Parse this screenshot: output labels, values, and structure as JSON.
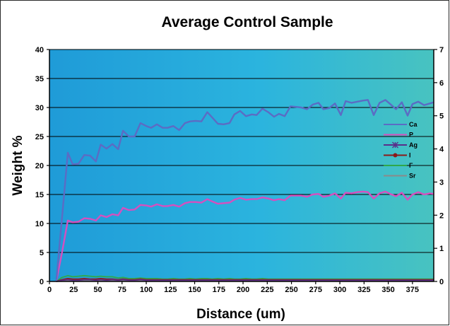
{
  "chart_data": {
    "type": "line",
    "title": "Average Control Sample",
    "xlabel": "Distance (um)",
    "ylabel": "Weight %",
    "xlim": [
      0,
      397
    ],
    "ylim": [
      0,
      40
    ],
    "y2lim": [
      0,
      7
    ],
    "x_ticks": [
      "0",
      "25",
      "50",
      "75",
      "100",
      "125",
      "150",
      "175",
      "200",
      "225",
      "250",
      "275",
      "300",
      "325",
      "350",
      "375"
    ],
    "y_ticks": [
      "0",
      "5",
      "10",
      "15",
      "20",
      "25",
      "30",
      "35",
      "40"
    ],
    "y2_ticks": [
      "0",
      "1",
      "2",
      "3",
      "4",
      "5",
      "6",
      "7"
    ],
    "grid": "horizontal major",
    "legend_position": "right",
    "background_gradient": [
      "#1f9bd8",
      "#2bb4de",
      "#48c3c0"
    ],
    "x": [
      7,
      13,
      19,
      24,
      30,
      36,
      42,
      48,
      53,
      59,
      65,
      71,
      76,
      82,
      88,
      94,
      100,
      105,
      111,
      117,
      122,
      128,
      134,
      140,
      145,
      151,
      157,
      163,
      168,
      174,
      180,
      186,
      191,
      197,
      203,
      209,
      214,
      220,
      226,
      232,
      237,
      243,
      249,
      255,
      260,
      266,
      272,
      278,
      283,
      289,
      295,
      301,
      306,
      312,
      318,
      324,
      329,
      335,
      341,
      347,
      352,
      358,
      364,
      370,
      375,
      381,
      387,
      393,
      397
    ],
    "series": [
      {
        "name": "Ca",
        "color": "#5b6cc4",
        "marker": "line",
        "values": [
          0,
          11,
          22.2,
          20.2,
          20.3,
          21.8,
          21.7,
          20.7,
          23.6,
          22.9,
          23.7,
          22.8,
          26,
          25,
          25,
          27.3,
          26.8,
          26.5,
          27.1,
          26.5,
          26.5,
          26.8,
          26.1,
          27.3,
          27.6,
          27.7,
          27.6,
          29.2,
          28.3,
          27.2,
          27.1,
          27.3,
          28.8,
          29.4,
          28.5,
          28.8,
          28.7,
          29.8,
          29.2,
          28.4,
          28.9,
          28.5,
          30.2,
          30.1,
          30,
          29.7,
          30.5,
          30.8,
          29.7,
          29.9,
          30.7,
          28.7,
          31.1,
          30.8,
          31,
          31.2,
          31.3,
          28.7,
          30.8,
          31.3,
          30.6,
          29.7,
          30.9,
          28.6,
          30.6,
          31,
          30.4,
          30.7,
          30.9
        ]
      },
      {
        "name": "P",
        "color": "#d64fbf",
        "marker": "line",
        "values": [
          0,
          5,
          10.5,
          10.2,
          10.3,
          10.9,
          10.8,
          10.5,
          11.4,
          11.1,
          11.6,
          11.4,
          12.7,
          12.3,
          12.4,
          13.2,
          13.1,
          12.9,
          13.3,
          13,
          13,
          13.2,
          12.9,
          13.5,
          13.7,
          13.7,
          13.6,
          14.2,
          13.8,
          13.4,
          13.5,
          13.6,
          14.1,
          14.4,
          14.1,
          14.2,
          14.2,
          14.5,
          14.3,
          14,
          14.2,
          14,
          14.8,
          14.8,
          14.8,
          14.6,
          15,
          15.1,
          14.6,
          14.8,
          15.2,
          14.3,
          15.3,
          15.2,
          15.4,
          15.5,
          15.4,
          14.3,
          15.2,
          15.5,
          15.1,
          14.7,
          15.3,
          14.1,
          15,
          15.4,
          15,
          15.2,
          15.1
        ]
      },
      {
        "name": "Ag",
        "color": "#5a2e8a",
        "marker": "star",
        "values": [
          0,
          0.2,
          0.3,
          0.2,
          0.2,
          0.3,
          0.3,
          0.2,
          0.3,
          0.2,
          0.3,
          0.2,
          0.3,
          0.2,
          0.2,
          0.3,
          0.2,
          0.2,
          0.2,
          0.2,
          0.2,
          0.2,
          0.2,
          0.2,
          0.2,
          0.2,
          0.2,
          0.2,
          0.2,
          0.2,
          0.2,
          0.2,
          0.2,
          0.2,
          0.2,
          0.2,
          0.2,
          0.2,
          0.2,
          0.2,
          0.2,
          0.2,
          0.2,
          0.2,
          0.2,
          0.2,
          0.2,
          0.2,
          0.2,
          0.2,
          0.2,
          0.2,
          0.2,
          0.2,
          0.2,
          0.2,
          0.2,
          0.2,
          0.2,
          0.2,
          0.2,
          0.2,
          0.2,
          0.2,
          0.2,
          0.2,
          0.2,
          0.2,
          0.2
        ]
      },
      {
        "name": "I",
        "color": "#8b1a1a",
        "marker": "dot",
        "values": [
          0,
          0.3,
          0.5,
          0.4,
          0.4,
          0.5,
          0.4,
          0.4,
          0.5,
          0.4,
          0.4,
          0.3,
          0.4,
          0.3,
          0.3,
          0.4,
          0.3,
          0.3,
          0.3,
          0.3,
          0.3,
          0.3,
          0.3,
          0.3,
          0.3,
          0.3,
          0.3,
          0.3,
          0.3,
          0.3,
          0.3,
          0.3,
          0.3,
          0.3,
          0.3,
          0.3,
          0.3,
          0.3,
          0.3,
          0.3,
          0.3,
          0.3,
          0.3,
          0.3,
          0.3,
          0.3,
          0.3,
          0.3,
          0.3,
          0.3,
          0.3,
          0.3,
          0.3,
          0.3,
          0.3,
          0.3,
          0.3,
          0.3,
          0.3,
          0.3,
          0.3,
          0.3,
          0.3,
          0.3,
          0.3,
          0.3,
          0.3,
          0.3,
          0.3
        ]
      },
      {
        "name": "F",
        "color": "#2fa84a",
        "marker": "line",
        "values": [
          0,
          0.7,
          1,
          0.8,
          0.9,
          1,
          0.9,
          0.8,
          0.9,
          0.8,
          0.8,
          0.6,
          0.7,
          0.5,
          0.5,
          0.6,
          0.5,
          0.5,
          0.5,
          0.4,
          0.4,
          0.5,
          0.4,
          0.4,
          0.5,
          0.4,
          0.5,
          0.5,
          0.4,
          0.5,
          0.4,
          0.5,
          0.4,
          0.4,
          0.5,
          0.4,
          0.4,
          0.5,
          0.4,
          0.4,
          0.4,
          0.4,
          0.4,
          0.4,
          0.4,
          0.4,
          0.4,
          0.4,
          0.4,
          0.4,
          0.4,
          0.4,
          0.4,
          0.4,
          0.4,
          0.4,
          0.4,
          0.4,
          0.4,
          0.4,
          0.4,
          0.4,
          0.4,
          0.4,
          0.4,
          0.4,
          0.4,
          0.4,
          0.4
        ]
      },
      {
        "name": "Sr",
        "color": "#8a8a8a",
        "marker": "line",
        "values": [
          0,
          0.1,
          0.1,
          0.1,
          0.1,
          0.1,
          0.1,
          0.1,
          0.1,
          0.1,
          0.1,
          0.1,
          0.1,
          0.1,
          0.1,
          0.1,
          0.1,
          0.1,
          0.1,
          0.1,
          0.1,
          0.1,
          0.1,
          0.1,
          0.1,
          0.1,
          0.1,
          0.1,
          0.1,
          0.1,
          0.1,
          0.1,
          0.1,
          0.1,
          0.1,
          0.1,
          0.1,
          0.1,
          0.1,
          0.1,
          0.1,
          0.1,
          0.1,
          0.1,
          0.1,
          0.1,
          0.1,
          0.1,
          0.1,
          0.1,
          0.1,
          0.1,
          0.1,
          0.1,
          0.1,
          0.1,
          0.1,
          0.1,
          0.1,
          0.1,
          0.1,
          0.1,
          0.1,
          0.1,
          0.1,
          0.1,
          0.1,
          0.1,
          0.1
        ]
      }
    ]
  }
}
